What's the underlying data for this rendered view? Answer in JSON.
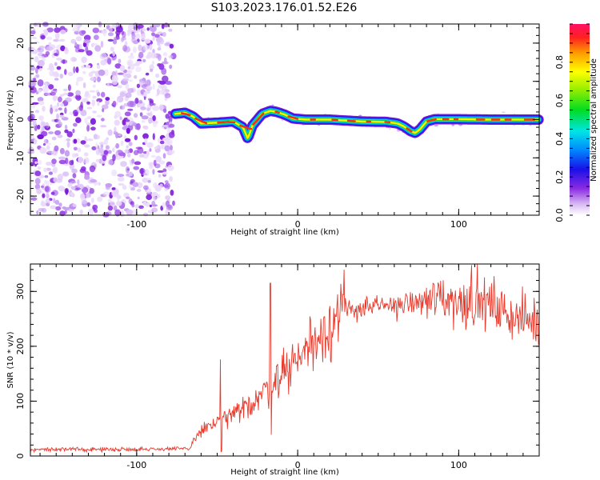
{
  "title": "S103.2023.176.01.52.E26",
  "chart_data": [
    {
      "type": "heatmap",
      "name": "spectrogram",
      "xlabel": "Height of straight line (km)",
      "ylabel": "Frequency (Hz)",
      "xlim": [
        -166,
        150
      ],
      "ylim": [
        -25,
        25
      ],
      "xticks": [
        "-100",
        "0",
        "100"
      ],
      "yticks": [
        "-20",
        "-10",
        "0",
        "10",
        "20"
      ],
      "colorbar": {
        "label": "Normalized spectral amplitude",
        "range": [
          0,
          1
        ],
        "ticks": [
          "0.0",
          "0.2",
          "0.4",
          "0.6",
          "0.8"
        ]
      },
      "noise_region_x": [
        -166,
        -77
      ],
      "ridge": {
        "x": [
          -76,
          -70,
          -65,
          -60,
          -50,
          -40,
          -34,
          -31,
          -28,
          -22,
          -17,
          -13,
          -8,
          -3,
          5,
          20,
          40,
          55,
          62,
          66,
          70,
          73,
          76,
          80,
          85,
          100,
          120,
          150
        ],
        "freq": [
          1.5,
          1.8,
          0.8,
          -1.0,
          -0.8,
          -0.5,
          -2.0,
          -5.0,
          -1.5,
          1.5,
          2.3,
          2.0,
          1.3,
          0.3,
          0.0,
          0.0,
          -0.5,
          -0.6,
          -1.0,
          -1.8,
          -3.0,
          -3.5,
          -2.5,
          -0.5,
          0.1,
          0.1,
          0.0,
          0.0
        ]
      }
    },
    {
      "type": "line",
      "name": "snr",
      "xlabel": "Height of straight line (km)",
      "ylabel": "SNR (10 * v/v)",
      "xlim": [
        -166,
        150
      ],
      "ylim": [
        0,
        350
      ],
      "xticks": [
        "-100",
        "0",
        "100"
      ],
      "yticks": [
        "0",
        "100",
        "200",
        "300"
      ],
      "color": "#e8392b",
      "x": [
        -166,
        -120,
        -80,
        -67,
        -65,
        -60,
        -55,
        -50,
        -45,
        -40,
        -35,
        -30,
        -25,
        -20,
        -15,
        -10,
        -5,
        0,
        5,
        10,
        15,
        20,
        25,
        30,
        40,
        50,
        60,
        70,
        80,
        90,
        100,
        110,
        120,
        130,
        140,
        150
      ],
      "values": [
        12,
        12,
        13,
        13,
        28,
        45,
        55,
        60,
        68,
        75,
        82,
        95,
        105,
        120,
        135,
        150,
        165,
        180,
        195,
        210,
        225,
        240,
        255,
        265,
        270,
        272,
        275,
        278,
        282,
        290,
        280,
        285,
        275,
        260,
        250,
        245
      ],
      "spikes": [
        {
          "x": -48,
          "value": 176
        },
        {
          "x": -17,
          "value": 315
        },
        {
          "x": 108,
          "value": 348
        }
      ]
    }
  ]
}
